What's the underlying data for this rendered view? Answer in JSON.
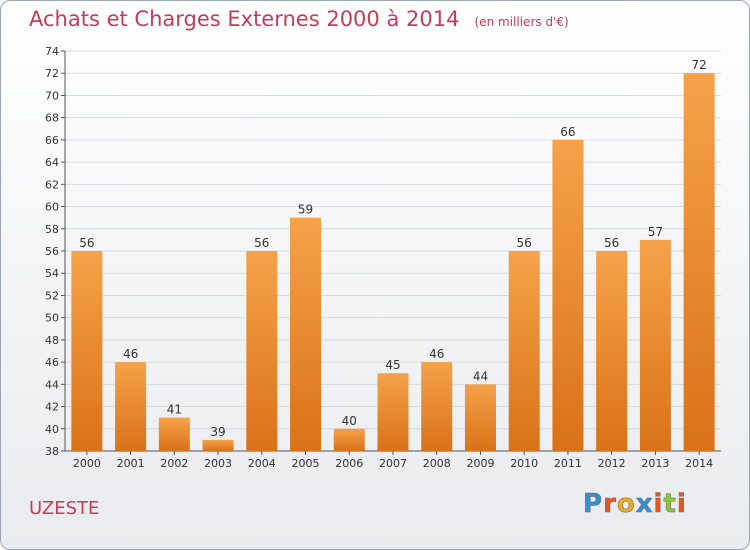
{
  "header": {
    "title": "Achats et Charges Externes 2000 à 2014",
    "subtitle": "(en milliers d'€)"
  },
  "footer": {
    "place": "UZESTE",
    "logo": "Proxiti",
    "logo_colors": [
      "#3a8fd1",
      "#e8551f",
      "#f0a81c",
      "#3a8fd1",
      "#e8551f",
      "#8cc43c",
      "#e8551f"
    ]
  },
  "colors": {
    "bar_top": "#f5a24a",
    "bar_bottom": "#d97218",
    "title": "#c63c55",
    "grid": "#d6dbe2"
  },
  "chart_data": {
    "type": "bar",
    "categories": [
      "2000",
      "2001",
      "2002",
      "2003",
      "2004",
      "2005",
      "2006",
      "2007",
      "2008",
      "2009",
      "2010",
      "2011",
      "2012",
      "2013",
      "2014"
    ],
    "values": [
      56,
      46,
      41,
      39,
      56,
      59,
      40,
      45,
      46,
      44,
      56,
      66,
      56,
      57,
      72
    ],
    "ylim": [
      38,
      74
    ],
    "ytick_step": 2,
    "grid": true
  }
}
